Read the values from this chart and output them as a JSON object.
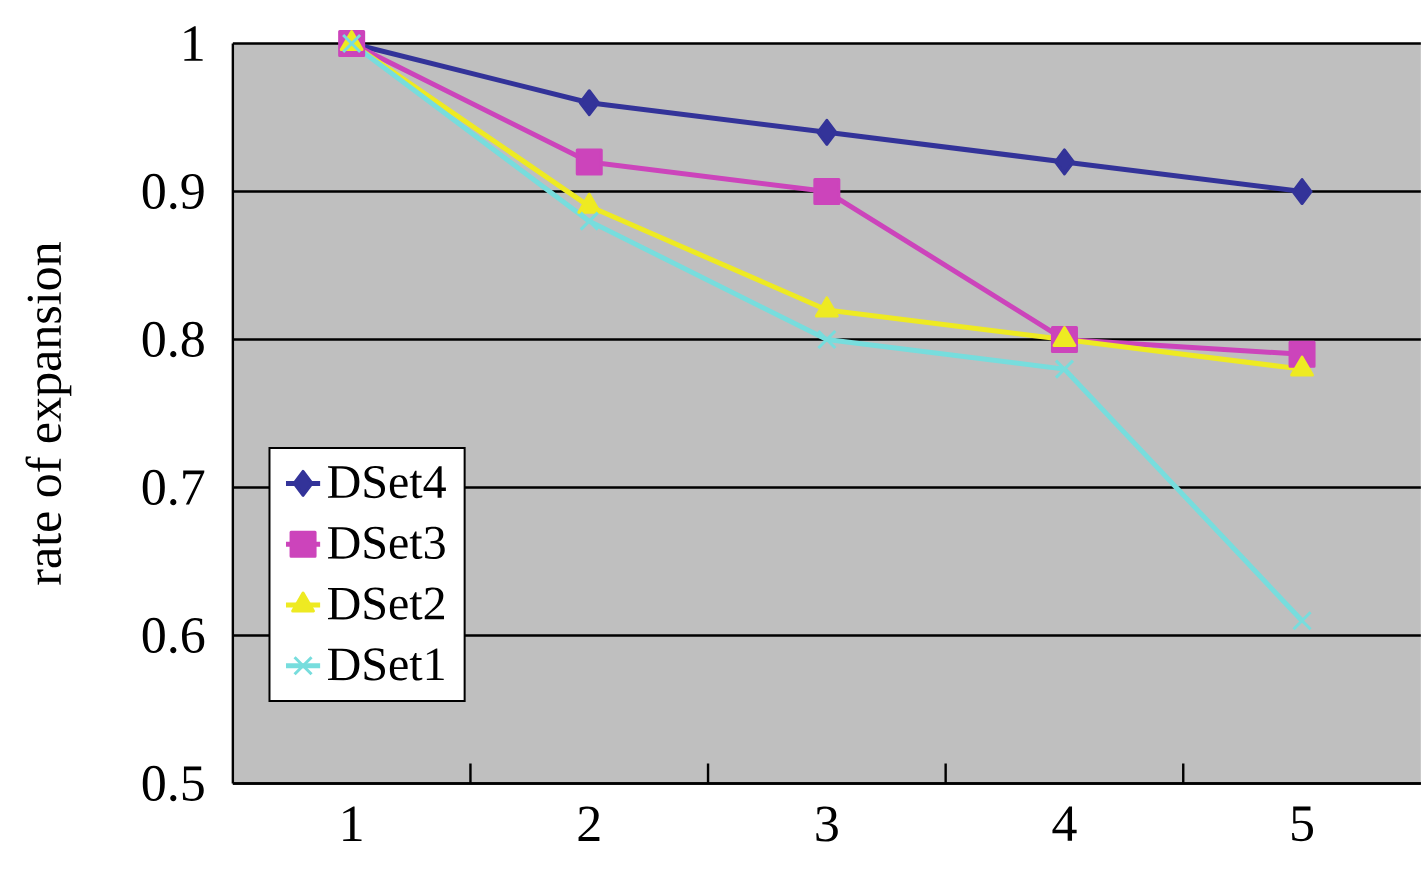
{
  "chart_data": {
    "type": "line",
    "ylabel": "rate of expansion",
    "categories": [
      "1",
      "2",
      "3",
      "4",
      "5"
    ],
    "series": [
      {
        "name": "DSet4",
        "color": "#333399",
        "marker": "diamond",
        "values": [
          1,
          0.96,
          0.94,
          0.92,
          0.9
        ]
      },
      {
        "name": "DSet3",
        "color": "#cc44bb",
        "marker": "square",
        "values": [
          1,
          0.92,
          0.9,
          0.8,
          0.79
        ]
      },
      {
        "name": "DSet2",
        "color": "#eeea22",
        "marker": "triangle",
        "values": [
          1,
          0.89,
          0.82,
          0.8,
          0.78
        ]
      },
      {
        "name": "DSet1",
        "color": "#77dddd",
        "marker": "cross",
        "values": [
          1,
          0.88,
          0.8,
          0.78,
          0.61
        ]
      }
    ],
    "ylim": [
      0.5,
      1
    ],
    "yticks": [
      0.5,
      0.6,
      0.7,
      0.8,
      0.9,
      1
    ],
    "grid": "y",
    "legend": "bottom left"
  }
}
